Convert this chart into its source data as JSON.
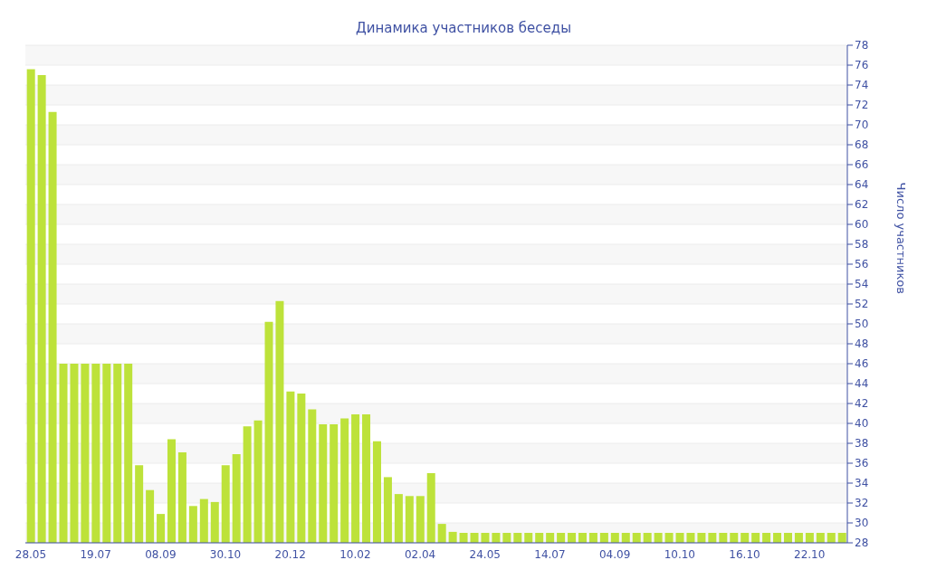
{
  "chart_data": {
    "type": "bar",
    "title": "Динамика участников беседы",
    "ylabel": "Число участников",
    "categories": [
      "28.05",
      null,
      null,
      null,
      null,
      null,
      "19.07",
      null,
      null,
      null,
      null,
      null,
      "08.09",
      null,
      null,
      null,
      null,
      null,
      "30.10",
      null,
      null,
      null,
      null,
      null,
      "20.12",
      null,
      null,
      null,
      null,
      null,
      "10.02",
      null,
      null,
      null,
      null,
      null,
      "02.04",
      null,
      null,
      null,
      null,
      null,
      "24.05",
      null,
      null,
      null,
      null,
      null,
      "14.07",
      null,
      null,
      null,
      null,
      null,
      "04.09",
      null,
      null,
      null,
      null,
      null,
      "10.10",
      null,
      null,
      null,
      null,
      null,
      "16.10",
      null,
      null,
      null,
      null,
      null,
      "22.10",
      null,
      null,
      null
    ],
    "values": [
      75.6,
      75.0,
      71.3,
      46,
      46,
      46,
      46,
      46,
      46,
      46,
      35.8,
      33.3,
      30.9,
      38.4,
      37.1,
      31.7,
      32.4,
      32.1,
      35.8,
      36.9,
      39.7,
      40.3,
      50.2,
      52.3,
      43.2,
      43.0,
      41.4,
      39.9,
      39.9,
      40.5,
      40.9,
      40.9,
      38.2,
      34.6,
      32.9,
      32.7,
      32.7,
      35.0,
      29.9,
      29.1,
      29,
      29,
      29,
      29,
      29,
      29,
      29,
      29,
      29,
      29,
      29,
      29,
      29,
      29,
      29,
      29,
      29,
      29,
      29,
      29,
      29,
      29,
      29,
      29,
      29,
      29,
      29,
      29,
      29,
      29,
      29,
      29,
      29,
      29,
      29,
      29
    ],
    "color": "#bde23a",
    "ylim": [
      28,
      78
    ],
    "yticks": [
      28,
      30,
      32,
      34,
      36,
      38,
      40,
      42,
      44,
      46,
      48,
      50,
      52,
      54,
      56,
      58,
      60,
      62,
      64,
      66,
      68,
      70,
      72,
      74,
      76,
      78
    ],
    "grid": "y"
  }
}
